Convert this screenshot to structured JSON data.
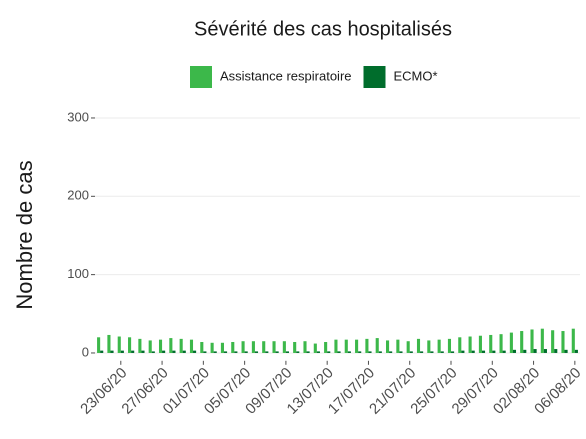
{
  "chart_data": {
    "type": "bar",
    "title": "Sévérité des cas hospitalisés",
    "y_label": "Nombre de cas",
    "categories": [
      null,
      null,
      "23/06/20",
      null,
      null,
      null,
      "27/06/20",
      null,
      null,
      null,
      "01/07/20",
      null,
      null,
      null,
      "05/07/20",
      null,
      null,
      null,
      "09/07/20",
      null,
      null,
      null,
      "13/07/20",
      null,
      null,
      null,
      "17/07/20",
      null,
      null,
      null,
      "21/07/20",
      null,
      null,
      null,
      "25/07/20",
      null,
      null,
      null,
      "29/07/20",
      null,
      null,
      null,
      "02/08/20",
      null,
      null,
      null,
      "06/08/20"
    ],
    "series": [
      {
        "name": "Assistance respiratoire",
        "color": "#3cb84a",
        "values": [
          20,
          23,
          21,
          20,
          18,
          16,
          17,
          19,
          18,
          17,
          14,
          13,
          13,
          14,
          15,
          15,
          15,
          15,
          15,
          14,
          15,
          12,
          14,
          17,
          17,
          17,
          18,
          19,
          16,
          17,
          15,
          18,
          16,
          17,
          18,
          20,
          21,
          22,
          23,
          24,
          26,
          28,
          30,
          31,
          29,
          28,
          31
        ]
      },
      {
        "name": "ECMO*",
        "color": "#006d2c",
        "values": [
          3,
          3,
          3,
          3,
          3,
          2,
          3,
          3,
          3,
          3,
          2,
          2,
          2,
          2,
          2,
          2,
          2,
          2,
          2,
          2,
          2,
          2,
          2,
          2,
          2,
          2,
          2,
          2,
          2,
          2,
          2,
          2,
          2,
          2,
          2,
          3,
          3,
          3,
          3,
          3,
          4,
          4,
          5,
          5,
          5,
          4,
          4
        ]
      }
    ],
    "ylim": [
      -10,
      320
    ],
    "yticks": [
      0,
      100,
      200,
      300
    ],
    "grid": true
  }
}
